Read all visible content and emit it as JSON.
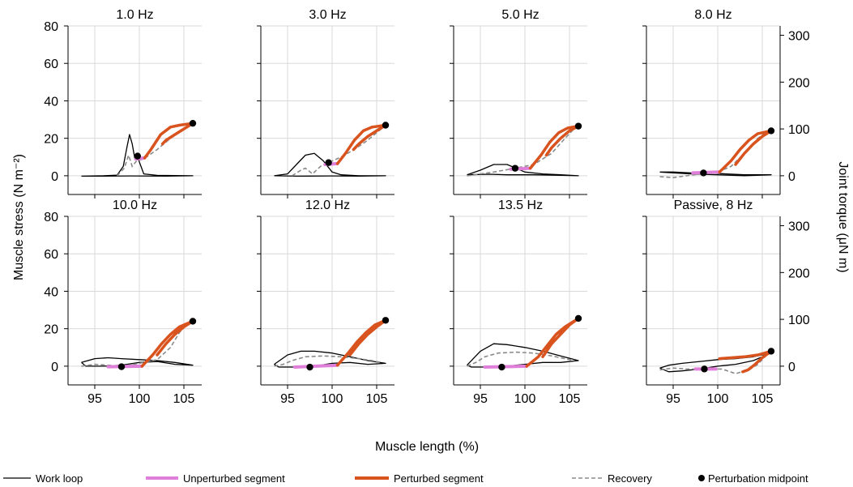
{
  "figure": {
    "ylabel_left": "Muscle stress (N m⁻²)",
    "ylabel_right": "Joint torque (μN m)",
    "xlabel": "Muscle length (%)",
    "legend": {
      "work_loop": "Work loop",
      "unperturbed": "Unperturbed segment",
      "perturbed": "Perturbed segment",
      "recovery": "Recovery",
      "midpoint": "Perturbation midpoint"
    },
    "colors": {
      "work_loop": "#000000",
      "unperturbed": "#e07fd9",
      "perturbed": "#d9531e",
      "recovery": "#8a8a8a",
      "midpoint": "#000000"
    }
  },
  "chart_data": [
    {
      "type": "line",
      "title": "1.0 Hz",
      "xlim": [
        92,
        107
      ],
      "ylim": [
        -10,
        80
      ],
      "xticks": [
        95,
        100,
        105
      ],
      "yticks": [
        0,
        20,
        40,
        60,
        80
      ],
      "right_yticks": [
        0,
        100,
        200,
        300
      ],
      "right_ylim": [
        -40,
        320
      ],
      "midpoint": [
        99.8,
        10.5
      ],
      "perturbed_end": [
        106,
        28
      ],
      "work_loop": [
        [
          93.5,
          -0.2
        ],
        [
          96,
          0
        ],
        [
          97.5,
          0.3
        ],
        [
          98.2,
          5
        ],
        [
          98.6,
          15
        ],
        [
          98.9,
          22
        ],
        [
          99.2,
          17
        ],
        [
          99.5,
          9
        ],
        [
          99.8,
          10
        ],
        [
          100.5,
          1
        ],
        [
          102,
          0.2
        ],
        [
          106,
          0
        ],
        [
          103,
          -0.2
        ],
        [
          99,
          -0.1
        ],
        [
          96,
          -0.2
        ],
        [
          93.5,
          -0.2
        ]
      ],
      "recovery": [
        [
          97.5,
          0
        ],
        [
          98.3,
          4
        ],
        [
          98.8,
          11
        ],
        [
          99.2,
          5
        ],
        [
          99.7,
          8
        ],
        [
          100.5,
          9
        ],
        [
          102,
          14
        ],
        [
          103.5,
          20
        ],
        [
          105.5,
          27
        ]
      ],
      "unperturbed": [
        [
          99.6,
          9
        ],
        [
          100.6,
          9.5
        ]
      ],
      "perturbed": [
        [
          100.6,
          9.5
        ],
        [
          101.3,
          14
        ],
        [
          102.4,
          22
        ],
        [
          103.5,
          26
        ],
        [
          104.5,
          27
        ],
        [
          106,
          28
        ],
        [
          105,
          25
        ],
        [
          104,
          22
        ],
        [
          103,
          19
        ],
        [
          102.6,
          17
        ]
      ]
    },
    {
      "type": "line",
      "title": "3.0 Hz",
      "xlim": [
        92,
        107
      ],
      "ylim": [
        -10,
        80
      ],
      "xticks": [
        95,
        100,
        105
      ],
      "yticks": [
        0,
        20,
        40,
        60,
        80
      ],
      "right_yticks": [
        0,
        100,
        200,
        300
      ],
      "right_ylim": [
        -40,
        320
      ],
      "midpoint": [
        99.6,
        7
      ],
      "perturbed_end": [
        106,
        27
      ],
      "work_loop": [
        [
          93.5,
          0
        ],
        [
          95,
          1
        ],
        [
          96,
          6
        ],
        [
          97,
          11
        ],
        [
          98,
          12
        ],
        [
          99,
          8
        ],
        [
          100,
          2
        ],
        [
          101,
          0.5
        ],
        [
          103,
          0
        ],
        [
          106,
          0
        ],
        [
          103,
          -0.2
        ],
        [
          100,
          -0.1
        ],
        [
          96,
          -0.2
        ],
        [
          93.5,
          0
        ]
      ],
      "recovery": [
        [
          95.5,
          0
        ],
        [
          96.5,
          3
        ],
        [
          97,
          4
        ],
        [
          97.8,
          1
        ],
        [
          98.7,
          5
        ],
        [
          99.6,
          7
        ],
        [
          101,
          10
        ],
        [
          102.5,
          14
        ],
        [
          104,
          19
        ],
        [
          105.5,
          25
        ]
      ],
      "unperturbed": [
        [
          99.2,
          6
        ],
        [
          100.6,
          6.5
        ]
      ],
      "perturbed": [
        [
          100.6,
          6.5
        ],
        [
          101.5,
          12
        ],
        [
          102.5,
          19
        ],
        [
          103.5,
          24
        ],
        [
          104.5,
          26
        ],
        [
          106,
          27
        ],
        [
          105,
          24
        ],
        [
          104,
          21
        ],
        [
          103,
          17
        ],
        [
          102.4,
          14
        ]
      ]
    },
    {
      "type": "line",
      "title": "5.0 Hz",
      "xlim": [
        92,
        107
      ],
      "ylim": [
        -10,
        80
      ],
      "xticks": [
        95,
        100,
        105
      ],
      "yticks": [
        0,
        20,
        40,
        60,
        80
      ],
      "right_yticks": [
        0,
        100,
        200,
        300
      ],
      "right_ylim": [
        -40,
        320
      ],
      "midpoint": [
        98.9,
        4
      ],
      "perturbed_end": [
        106,
        26.5
      ],
      "work_loop": [
        [
          93.5,
          0.5
        ],
        [
          95,
          3
        ],
        [
          96.5,
          6
        ],
        [
          98,
          6
        ],
        [
          99,
          4
        ],
        [
          100,
          2
        ],
        [
          102,
          1
        ],
        [
          104,
          0.5
        ],
        [
          106,
          0
        ],
        [
          104,
          0.2
        ],
        [
          101,
          0.5
        ],
        [
          98,
          0.5
        ],
        [
          96,
          0.8
        ],
        [
          93.5,
          0.5
        ]
      ],
      "recovery": [
        [
          93.5,
          0
        ],
        [
          95,
          1
        ],
        [
          96.5,
          2
        ],
        [
          98.9,
          4
        ],
        [
          101,
          6
        ],
        [
          103,
          12
        ],
        [
          104.5,
          20
        ],
        [
          105.5,
          25
        ]
      ],
      "unperturbed": [
        [
          98.4,
          3.5
        ],
        [
          100.6,
          4
        ]
      ],
      "perturbed": [
        [
          100.6,
          4
        ],
        [
          101.8,
          11
        ],
        [
          102.8,
          18
        ],
        [
          103.8,
          23
        ],
        [
          104.8,
          25.5
        ],
        [
          106,
          26.5
        ],
        [
          105,
          24
        ],
        [
          104,
          20
        ],
        [
          103,
          15
        ],
        [
          102.4,
          11
        ]
      ]
    },
    {
      "type": "line",
      "title": "8.0 Hz",
      "xlim": [
        92,
        107
      ],
      "ylim": [
        -10,
        80
      ],
      "xticks": [
        95,
        100,
        105
      ],
      "yticks": [
        0,
        20,
        40,
        60,
        80
      ],
      "right_yticks": [
        0,
        100,
        200,
        300
      ],
      "right_ylim": [
        -40,
        320
      ],
      "midpoint": [
        98.4,
        1.5
      ],
      "perturbed_end": [
        106,
        24
      ],
      "work_loop": [
        [
          93.5,
          2
        ],
        [
          95,
          2
        ],
        [
          97,
          1.5
        ],
        [
          99,
          1.5
        ],
        [
          101,
          1
        ],
        [
          103,
          0.5
        ],
        [
          106,
          0.5
        ],
        [
          103,
          0
        ],
        [
          100,
          0.5
        ],
        [
          97,
          1
        ],
        [
          95,
          1.5
        ],
        [
          93.5,
          2
        ]
      ],
      "recovery": [
        [
          93.5,
          -0.5
        ],
        [
          95,
          -1
        ],
        [
          96.5,
          0
        ],
        [
          98,
          1
        ],
        [
          100,
          2
        ],
        [
          101.5,
          5
        ],
        [
          103,
          12
        ],
        [
          104.5,
          20
        ],
        [
          105.5,
          23.5
        ]
      ],
      "unperturbed": [
        [
          97.2,
          1.5
        ],
        [
          100.2,
          2
        ]
      ],
      "perturbed": [
        [
          100.2,
          2
        ],
        [
          101.5,
          8
        ],
        [
          102.5,
          14
        ],
        [
          103.5,
          19
        ],
        [
          104.5,
          22.5
        ],
        [
          106,
          24
        ],
        [
          105,
          21
        ],
        [
          104,
          17
        ],
        [
          103,
          12
        ],
        [
          102,
          6
        ]
      ]
    },
    {
      "type": "line",
      "title": "10.0 Hz",
      "xlim": [
        92,
        107
      ],
      "ylim": [
        -10,
        80
      ],
      "xticks": [
        95,
        100,
        105
      ],
      "yticks": [
        0,
        20,
        40,
        60,
        80
      ],
      "right_yticks": [
        0,
        100,
        200,
        300
      ],
      "right_ylim": [
        -40,
        320
      ],
      "midpoint": [
        98,
        -0.3
      ],
      "perturbed_end": [
        106,
        24
      ],
      "work_loop": [
        [
          93.5,
          2
        ],
        [
          95,
          4
        ],
        [
          96.5,
          4.5
        ],
        [
          98,
          4
        ],
        [
          100,
          3.5
        ],
        [
          102,
          3
        ],
        [
          104,
          2
        ],
        [
          106,
          0.5
        ],
        [
          104,
          1
        ],
        [
          102,
          2.5
        ],
        [
          100,
          2
        ],
        [
          98,
          0.5
        ],
        [
          96,
          0
        ],
        [
          94,
          0
        ],
        [
          93.5,
          2
        ]
      ],
      "recovery": [
        [
          93.5,
          0
        ],
        [
          95,
          1
        ],
        [
          96.5,
          0.5
        ],
        [
          98,
          0
        ],
        [
          100,
          1.5
        ],
        [
          102,
          3.5
        ],
        [
          103.5,
          10
        ],
        [
          104.5,
          18
        ],
        [
          105.5,
          23
        ]
      ],
      "unperturbed": [
        [
          96.5,
          -0.3
        ],
        [
          100.3,
          0
        ]
      ],
      "perturbed": [
        [
          100.3,
          0
        ],
        [
          101.5,
          6
        ],
        [
          102.5,
          12
        ],
        [
          103.5,
          17
        ],
        [
          104.5,
          21
        ],
        [
          106,
          24
        ],
        [
          105,
          21
        ],
        [
          104,
          17
        ],
        [
          103,
          12
        ],
        [
          102,
          6
        ]
      ]
    },
    {
      "type": "line",
      "title": "12.0 Hz",
      "xlim": [
        92,
        107
      ],
      "ylim": [
        -10,
        80
      ],
      "xticks": [
        95,
        100,
        105
      ],
      "yticks": [
        0,
        20,
        40,
        60,
        80
      ],
      "right_yticks": [
        0,
        100,
        200,
        300
      ],
      "right_ylim": [
        -40,
        320
      ],
      "midpoint": [
        97.5,
        -0.5
      ],
      "perturbed_end": [
        106,
        24.5
      ],
      "work_loop": [
        [
          93.5,
          1
        ],
        [
          95,
          6
        ],
        [
          96.5,
          8
        ],
        [
          98,
          8
        ],
        [
          100,
          7
        ],
        [
          102,
          5
        ],
        [
          104,
          3
        ],
        [
          106,
          1.5
        ],
        [
          104,
          1
        ],
        [
          102,
          2
        ],
        [
          100,
          1.5
        ],
        [
          98,
          0
        ],
        [
          96,
          -0.5
        ],
        [
          94,
          -0.5
        ],
        [
          93.5,
          1
        ]
      ],
      "recovery": [
        [
          93.5,
          0
        ],
        [
          94.5,
          1
        ],
        [
          95.5,
          3
        ],
        [
          97,
          5
        ],
        [
          99,
          5.5
        ],
        [
          101,
          5
        ],
        [
          103,
          4
        ],
        [
          104.5,
          3
        ],
        [
          105.5,
          2
        ]
      ],
      "unperturbed": [
        [
          95.8,
          -0.5
        ],
        [
          100.6,
          0.5
        ]
      ],
      "perturbed": [
        [
          100.6,
          0.5
        ],
        [
          101.8,
          7
        ],
        [
          102.8,
          13
        ],
        [
          103.8,
          18
        ],
        [
          104.8,
          22
        ],
        [
          106,
          24.5
        ],
        [
          105,
          21
        ],
        [
          104,
          17
        ],
        [
          103,
          12
        ],
        [
          102,
          6
        ]
      ]
    },
    {
      "type": "line",
      "title": "13.5 Hz",
      "xlim": [
        92,
        107
      ],
      "ylim": [
        -10,
        80
      ],
      "xticks": [
        95,
        100,
        105
      ],
      "yticks": [
        0,
        20,
        40,
        60,
        80
      ],
      "right_yticks": [
        0,
        100,
        200,
        300
      ],
      "right_ylim": [
        -40,
        320
      ],
      "midpoint": [
        97.4,
        -0.5
      ],
      "perturbed_end": [
        106,
        25.5
      ],
      "work_loop": [
        [
          93.5,
          0.5
        ],
        [
          95,
          8
        ],
        [
          96.5,
          12
        ],
        [
          98,
          11.5
        ],
        [
          100,
          10
        ],
        [
          102,
          8
        ],
        [
          104,
          5.5
        ],
        [
          106,
          3
        ],
        [
          104,
          2
        ],
        [
          102,
          2
        ],
        [
          100,
          1
        ],
        [
          98,
          0
        ],
        [
          96,
          -0.5
        ],
        [
          94,
          -0.5
        ],
        [
          93.5,
          0.5
        ]
      ],
      "recovery": [
        [
          93.5,
          0
        ],
        [
          94.5,
          2
        ],
        [
          95.5,
          5
        ],
        [
          97,
          7
        ],
        [
          99,
          7.5
        ],
        [
          101,
          7
        ],
        [
          103,
          5.5
        ],
        [
          104.5,
          4
        ],
        [
          105.5,
          3
        ]
      ],
      "unperturbed": [
        [
          95.5,
          -0.5
        ],
        [
          100.2,
          0
        ]
      ],
      "perturbed": [
        [
          100.2,
          0
        ],
        [
          101.5,
          5
        ],
        [
          102.5,
          11
        ],
        [
          103.5,
          17
        ],
        [
          104.5,
          21
        ],
        [
          106,
          25.5
        ],
        [
          105,
          22
        ],
        [
          104,
          17
        ],
        [
          103,
          12
        ],
        [
          102,
          5
        ]
      ]
    },
    {
      "type": "line",
      "title": "Passive, 8 Hz",
      "xlim": [
        92,
        107
      ],
      "ylim": [
        -10,
        80
      ],
      "xticks": [
        95,
        100,
        105
      ],
      "yticks": [
        0,
        20,
        40,
        60,
        80
      ],
      "right_yticks": [
        0,
        100,
        200,
        300
      ],
      "right_ylim": [
        -40,
        320
      ],
      "midpoint": [
        98.5,
        -1.5
      ],
      "perturbed_end": [
        106,
        8
      ],
      "work_loop": [
        [
          93.5,
          -1
        ],
        [
          94.5,
          0.5
        ],
        [
          96,
          1.5
        ],
        [
          98,
          2.5
        ],
        [
          100,
          3.5
        ],
        [
          102,
          4
        ],
        [
          104,
          5
        ],
        [
          106,
          7
        ],
        [
          104,
          3
        ],
        [
          102,
          1
        ],
        [
          100,
          0
        ],
        [
          98,
          -1.5
        ],
        [
          96,
          -2.5
        ],
        [
          94.5,
          -3
        ],
        [
          93.5,
          -1
        ]
      ],
      "recovery": [
        [
          93.5,
          -2
        ],
        [
          95,
          -1
        ],
        [
          96.5,
          -1.5
        ],
        [
          98.5,
          -1.5
        ],
        [
          100.5,
          -1.5
        ],
        [
          102,
          -4
        ],
        [
          103.5,
          -2
        ],
        [
          104.5,
          1
        ],
        [
          105.5,
          6
        ]
      ],
      "unperturbed": [
        [
          97.5,
          -1.5
        ],
        [
          99.8,
          -1.5
        ]
      ],
      "perturbed": [
        [
          100.2,
          4
        ],
        [
          101.5,
          4.5
        ],
        [
          103,
          5
        ],
        [
          104.5,
          6
        ],
        [
          106,
          8
        ],
        [
          105,
          4.5
        ],
        [
          104.2,
          1
        ],
        [
          103.4,
          -2
        ],
        [
          102.8,
          -3
        ]
      ]
    }
  ]
}
